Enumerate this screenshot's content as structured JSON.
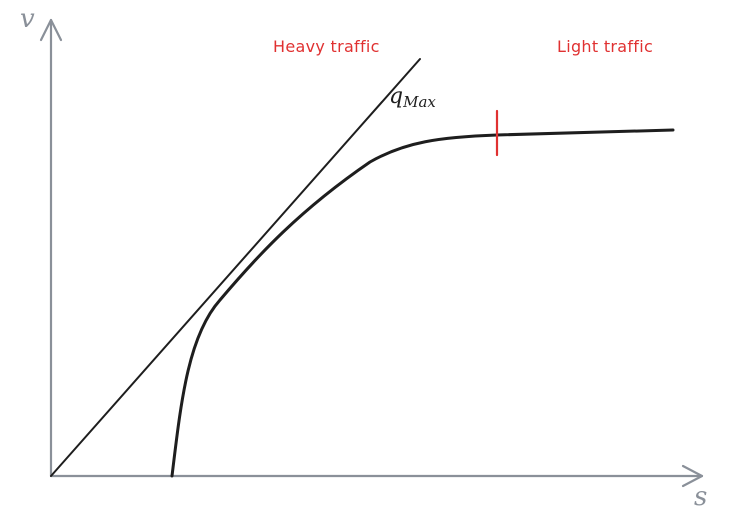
{
  "axes": {
    "y_label": "v",
    "x_label": "s"
  },
  "labels": {
    "tangent_main": "q",
    "tangent_sub": "Max",
    "heavy_traffic": "Heavy traffic",
    "light_traffic": "Light traffic"
  },
  "colors": {
    "ink": "#1e1e1e",
    "axis": "#8a9099",
    "accent": "#e03131"
  }
}
